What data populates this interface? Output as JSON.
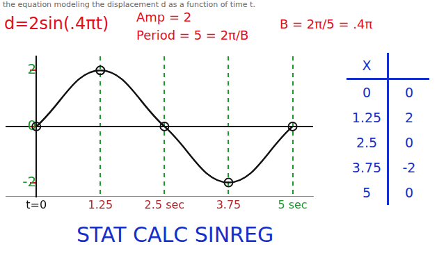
{
  "chart_data": {
    "type": "line",
    "title": "d=2sin(.4πt)",
    "annotations": [
      "the equation modeling the displacement d as a function of time t.",
      "Amp = 2",
      "Period = 5 = 2π/B",
      "B = 2π/5 = .4π",
      "STAT CALC SINREG"
    ],
    "table_header": "X",
    "x": [
      0,
      1.25,
      2.5,
      3.75,
      5
    ],
    "values": [
      0,
      2,
      0,
      -2,
      0
    ],
    "color": "#111111",
    "marker": "circle",
    "xlim": [
      -0.6,
      5.4
    ],
    "ylim": [
      -2.5,
      2.5
    ],
    "xticks": [
      {
        "value": 0,
        "label": "t=0"
      },
      {
        "value": 1.25,
        "label": "1.25"
      },
      {
        "value": 2.5,
        "label": "2.5 sec"
      },
      {
        "value": 3.75,
        "label": "3.75"
      },
      {
        "value": 5,
        "label": "5 sec"
      }
    ],
    "yticks": [
      -2,
      0,
      2
    ],
    "grid": true
  }
}
